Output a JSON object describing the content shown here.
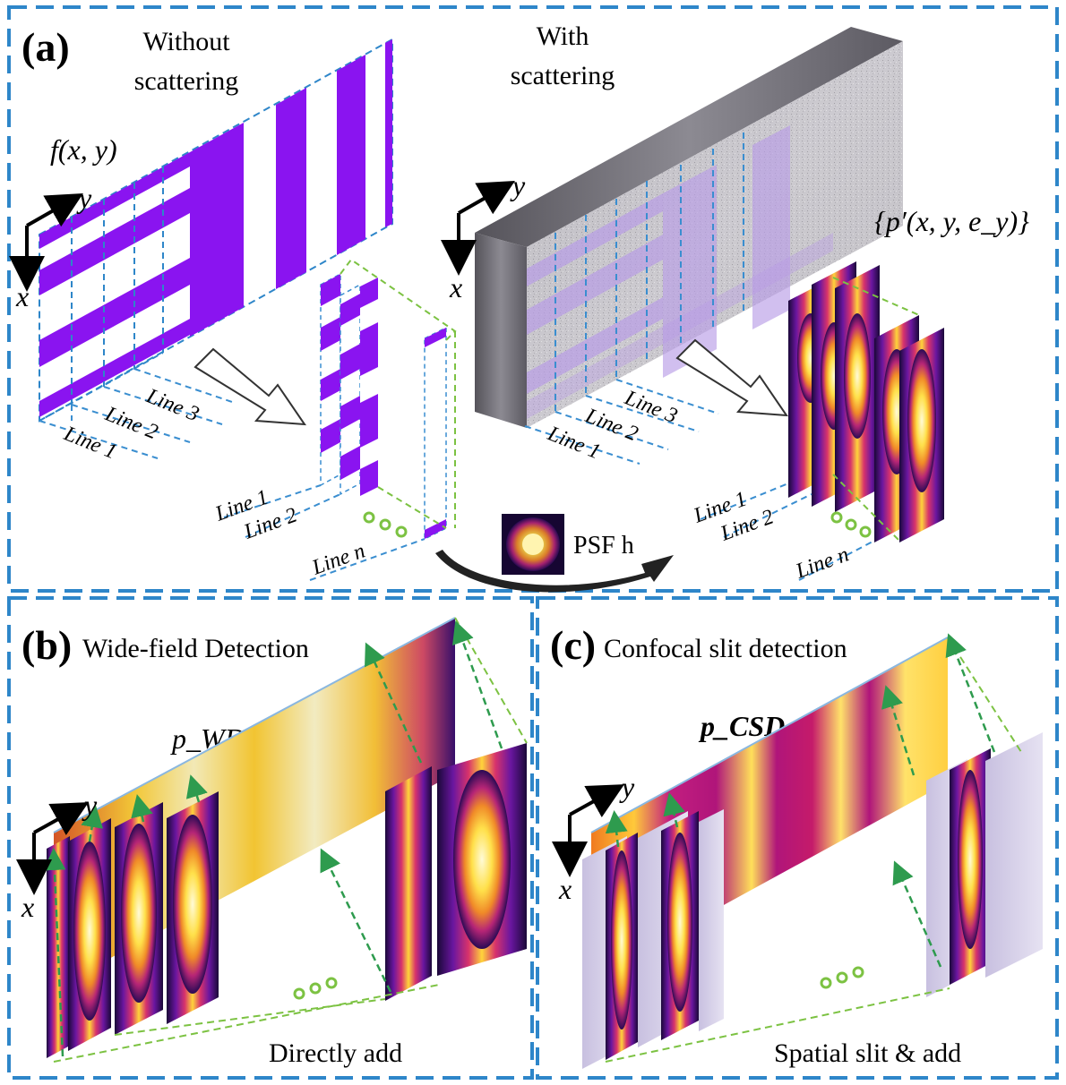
{
  "figure": {
    "panel_a": {
      "letter": "(a)",
      "without_title": [
        "Without",
        "scattering"
      ],
      "with_title": [
        "With",
        "scattering"
      ],
      "object_label": "f(x, y)",
      "projection_label": "{p′(x, y, e_y)}",
      "axis_x": "x",
      "axis_y": "y",
      "lines_left": [
        "Line 1",
        "Line 2",
        "Line 3"
      ],
      "lines_right": [
        "Line 1",
        "Line 2",
        "Line 3"
      ],
      "stack_lines_left": [
        "Line 1",
        "Line 2",
        "Line n"
      ],
      "stack_lines_right": [
        "Line 1",
        "Line 2",
        "Line n"
      ],
      "psf_label": "PSF h"
    },
    "panel_b": {
      "letter": "(b)",
      "title": "Wide-field Detection",
      "sum_label": "p_WD",
      "axis_x": "x",
      "axis_y": "y",
      "caption": "Directly add"
    },
    "panel_c": {
      "letter": "(c)",
      "title": "Confocal slit detection",
      "sum_label": "p_CSD",
      "axis_x": "x",
      "axis_y": "y",
      "caption": "Spatial slit & add"
    },
    "colors": {
      "border_blue": "#2e86c9",
      "stripe_purple": "#8a14f0",
      "guide_green": "#7cc242",
      "arrow_green": "#2e9b4e",
      "grid_blue": "#3a8ed0"
    }
  }
}
